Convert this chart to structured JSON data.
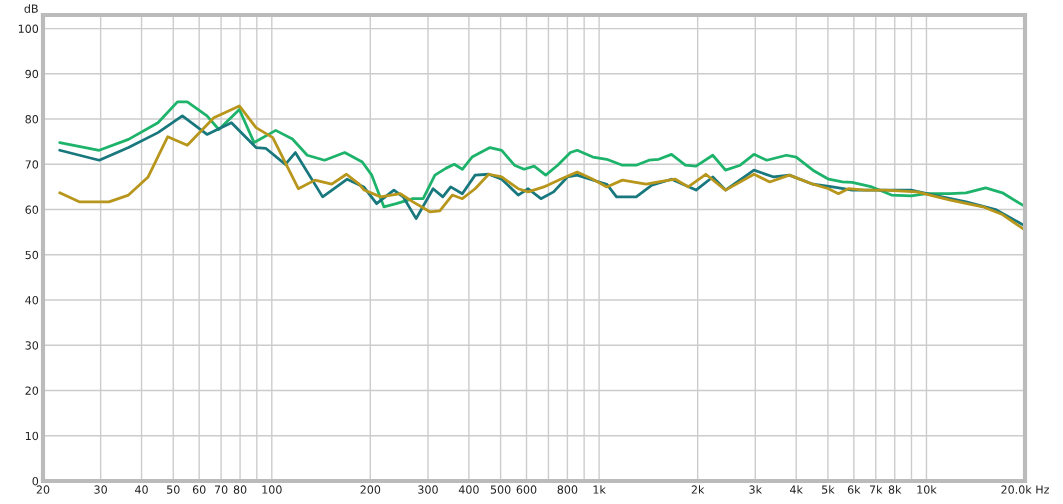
{
  "chart_data": {
    "type": "line",
    "ylabel": "dB",
    "log": "x",
    "grid": true,
    "legend": false,
    "line_style": "solid",
    "marker": "none",
    "xlim": [
      20,
      20000
    ],
    "ylim": [
      0,
      103
    ],
    "xticks": [
      20,
      30,
      40,
      50,
      60,
      70,
      80,
      {
        "value": 90,
        "label": null
      },
      100,
      200,
      300,
      400,
      500,
      600,
      {
        "value": 700,
        "label": null
      },
      800,
      {
        "value": 900,
        "label": null
      },
      {
        "value": 1000,
        "label": "1k"
      },
      {
        "value": 2000,
        "label": "2k"
      },
      {
        "value": 3000,
        "label": "3k"
      },
      {
        "value": 4000,
        "label": "4k"
      },
      {
        "value": 5000,
        "label": "5k"
      },
      {
        "value": 6000,
        "label": "6k"
      },
      {
        "value": 7000,
        "label": "7k"
      },
      {
        "value": 8000,
        "label": "8k"
      },
      {
        "value": 9000,
        "label": null
      },
      {
        "value": 10000,
        "label": "10k"
      },
      {
        "value": 20000,
        "label": "20.0k Hz"
      }
    ],
    "yticks": [
      0,
      10,
      20,
      30,
      40,
      50,
      60,
      70,
      80,
      90,
      100
    ],
    "series": [
      {
        "color": "#1db36b",
        "x": [
          22.5,
          29.7,
          36.5,
          44.9,
          51.5,
          55.2,
          63.4,
          68.9,
          79.6,
          88.3,
          102.8,
          115.6,
          128.3,
          145,
          167,
          189,
          202,
          220,
          240,
          270,
          290,
          315,
          340,
          361,
          382,
          409,
          464,
          504,
          551,
          590,
          633,
          687,
          747,
          817,
          857,
          957,
          1055,
          1178,
          1298,
          1420,
          1521,
          1664,
          1833,
          1977,
          2224,
          2433,
          2698,
          2972,
          3251,
          3733,
          4000,
          4499,
          5024,
          5534,
          5932,
          6812,
          7821,
          8979,
          10025,
          11830,
          13213,
          15170,
          17062,
          19862
        ],
        "values": [
          74.8,
          73.1,
          75.5,
          79.2,
          83.8,
          83.8,
          80.7,
          77.7,
          82.1,
          74.8,
          77.5,
          75.6,
          72.0,
          70.9,
          72.6,
          70.5,
          67.6,
          60.6,
          61.3,
          62.4,
          62.4,
          67.6,
          69.1,
          70.0,
          68.9,
          71.6,
          73.7,
          73.1,
          69.8,
          68.9,
          69.6,
          67.6,
          69.8,
          72.6,
          73.1,
          71.6,
          71.1,
          69.8,
          69.8,
          70.9,
          71.1,
          72.2,
          69.8,
          69.6,
          72.0,
          68.7,
          69.8,
          72.2,
          70.9,
          72.0,
          71.6,
          68.7,
          66.7,
          66.1,
          66.0,
          65.0,
          63.2,
          63.0,
          63.5,
          63.5,
          63.7,
          64.8,
          63.7,
          60.8
        ]
      },
      {
        "color": "#18787e",
        "x": [
          22.5,
          29.7,
          36.5,
          44.9,
          53.3,
          63.4,
          75.3,
          89.5,
          96,
          110,
          118,
          143,
          170,
          191,
          209,
          236,
          252,
          276,
          311,
          333,
          352,
          382,
          418,
          460,
          504,
          566,
          607,
          664,
          726,
          800,
          857,
          938,
          1055,
          1130,
          1298,
          1449,
          1664,
          1977,
          2224,
          2433,
          2972,
          3414,
          3811,
          4499,
          5165,
          5932,
          6812,
          8979,
          10519,
          13213,
          16256,
          19862
        ],
        "values": [
          73.1,
          70.9,
          73.7,
          77.0,
          80.7,
          76.6,
          79.2,
          73.7,
          73.5,
          70.0,
          72.6,
          62.8,
          66.7,
          65.0,
          61.3,
          64.3,
          62.8,
          58.0,
          64.6,
          62.8,
          65.0,
          63.5,
          67.6,
          67.8,
          66.7,
          63.2,
          64.6,
          62.4,
          63.9,
          67.2,
          67.6,
          66.7,
          65.6,
          62.8,
          62.8,
          65.4,
          66.7,
          64.3,
          67.2,
          64.3,
          68.7,
          67.2,
          67.6,
          65.6,
          65.0,
          64.3,
          64.3,
          64.3,
          63.2,
          61.7,
          60.0,
          56.5
        ]
      },
      {
        "color": "#b8961c",
        "x": [
          22.5,
          25.8,
          31.8,
          36.5,
          41.9,
          48.1,
          55.2,
          66.5,
          79.6,
          89.5,
          100.7,
          120.5,
          135.5,
          152.4,
          169.1,
          184.9,
          191.4,
          215,
          247,
          270,
          304,
          326,
          356,
          382,
          418,
          460,
          504,
          566,
          607,
          678,
          762,
          857,
          957,
          1055,
          1178,
          1391,
          1521,
          1710,
          1871,
          2118,
          2433,
          2972,
          3321,
          3811,
          4499,
          5024,
          5383,
          5770,
          6490,
          7453,
          9356,
          11830,
          14863,
          17062,
          19862
        ],
        "values": [
          63.7,
          61.7,
          61.7,
          63.2,
          67.2,
          76.1,
          74.2,
          80.3,
          82.9,
          78.1,
          75.9,
          64.6,
          66.5,
          65.6,
          67.8,
          65.6,
          64.3,
          62.8,
          63.5,
          61.7,
          59.5,
          59.7,
          63.2,
          62.4,
          64.6,
          67.8,
          67.2,
          64.6,
          63.9,
          65.0,
          66.7,
          68.3,
          66.7,
          65.0,
          66.5,
          65.6,
          66.1,
          66.7,
          65.0,
          67.8,
          64.3,
          67.8,
          66.1,
          67.6,
          65.6,
          64.6,
          63.5,
          64.6,
          64.3,
          64.3,
          63.9,
          62.1,
          60.6,
          58.9,
          55.6
        ]
      }
    ]
  }
}
